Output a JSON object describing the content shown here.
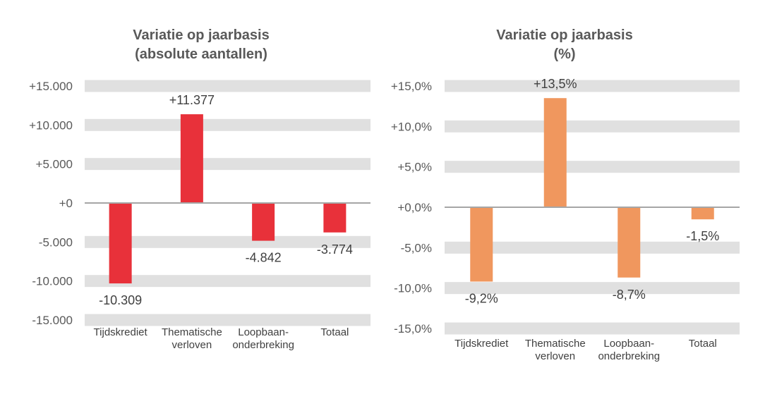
{
  "chart_data": [
    {
      "type": "bar",
      "title": [
        "Variatie op jaarbasis",
        "(absolute aantallen)"
      ],
      "categories": [
        [
          "Tijdskrediet"
        ],
        [
          "Thematische",
          "verloven"
        ],
        [
          "Loopbaan-",
          "onderbreking"
        ],
        [
          "Totaal"
        ]
      ],
      "values": [
        -10309,
        11377,
        -4842,
        -3774
      ],
      "data_labels": [
        "-10.309",
        "+11.377",
        "-4.842",
        "-3.774"
      ],
      "ylim": [
        -15000,
        15000
      ],
      "yticks": [
        15000,
        10000,
        5000,
        0,
        -5000,
        -10000,
        -15000
      ],
      "ytick_labels": [
        "+15.000",
        "+10.000",
        "+5.000",
        "+0",
        "-5.000",
        "-10.000",
        "-15.000"
      ],
      "grid": true,
      "color": "#E8313A"
    },
    {
      "type": "bar",
      "title": [
        "Variatie op jaarbasis",
        "(%)"
      ],
      "categories": [
        [
          "Tijdskrediet"
        ],
        [
          "Thematische",
          "verloven"
        ],
        [
          "Loopbaan-",
          "onderbreking"
        ],
        [
          "Totaal"
        ]
      ],
      "values": [
        -9.2,
        13.5,
        -8.7,
        -1.5
      ],
      "data_labels": [
        "-9,2%",
        "+13,5%",
        "-8,7%",
        "-1,5%"
      ],
      "ylim": [
        -15,
        15
      ],
      "yticks": [
        15,
        10,
        5,
        0,
        -5,
        -10,
        -15
      ],
      "ytick_labels": [
        "+15,0%",
        "+10,0%",
        "+5,0%",
        "+0,0%",
        "-5,0%",
        "-10,0%",
        "-15,0%"
      ],
      "grid": true,
      "color": "#F0975E"
    }
  ]
}
